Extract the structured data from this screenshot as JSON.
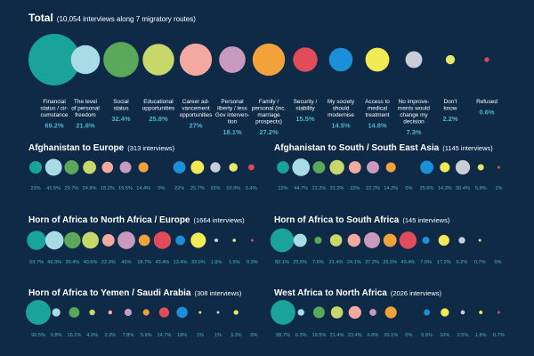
{
  "colors": {
    "background": "#0e2a47",
    "label_text": "#ffffff",
    "value_text": "#4fb3c8",
    "palette": [
      "#1aa39a",
      "#a9dbe6",
      "#5aa85a",
      "#c7d76a",
      "#f4a9a0",
      "#c99ac0",
      "#f3a23a",
      "#e24b5a",
      "#1b8fd8",
      "#f2ea55",
      "#c9cdd8",
      "#e6e66a",
      "#d94a5a"
    ]
  },
  "chart_data": [
    {
      "type": "bubble",
      "title": "Total",
      "subtitle": "(10,054 interviews along 7 migratory routes)",
      "categories": [
        "Financial status / circumstance",
        "The level of personal freedom",
        "Social status",
        "Educational opportunities",
        "Career advancement opportunities",
        "Personal liberty / less Gov intervention",
        "Family / personal (inc. marriage prospects)",
        "Security / stability",
        "My society should modernise",
        "Access to medical treatment",
        "No improvements would change my decision",
        "Don't know",
        "Refused"
      ],
      "category_labels": [
        [
          "Financial",
          "status / cir-",
          "cumstance"
        ],
        [
          "The level",
          "of personal",
          "freedom"
        ],
        [
          "Social",
          "status"
        ],
        [
          "Educational",
          "opportunities"
        ],
        [
          "Career ad-",
          "vancement",
          "opportunities"
        ],
        [
          "Personal",
          "liberty / less",
          "Gov interven-",
          "tion"
        ],
        [
          "Family /",
          "personal (inc.",
          "marriage",
          "prospects)"
        ],
        [
          "Security /",
          "stability"
        ],
        [
          "My society",
          "should",
          "modernise"
        ],
        [
          "Access to",
          "medical",
          "treatment"
        ],
        [
          "No improve-",
          "ments would",
          "change my",
          "decision"
        ],
        [
          "Don't",
          "know"
        ],
        [
          "Refused"
        ]
      ],
      "value_labels": [
        "69.2%",
        "21.8%",
        "32.4%",
        "25.8%",
        "27%",
        "18.1%",
        "27.2%",
        "15.5%",
        "14.5%",
        "14.8%",
        "7.3%",
        "2.2%",
        "0.6%"
      ],
      "values": [
        69.2,
        21.8,
        32.4,
        25.8,
        27,
        18.1,
        27.2,
        15.5,
        14.5,
        14.8,
        7.3,
        2.2,
        0.6
      ]
    },
    {
      "type": "bubble",
      "title": "Afghanistan to Europe",
      "subtitle": "(313 interviews)",
      "value_labels": [
        "23%",
        "41.5%",
        "29.7%",
        "24.9%",
        "18.2%",
        "19.5%",
        "14.4%",
        "0%",
        "22%",
        "25.7%",
        "15%",
        "10.9%",
        "5.4%"
      ],
      "values": [
        23,
        41.5,
        29.7,
        24.9,
        18.2,
        19.5,
        14.4,
        0,
        22,
        25.7,
        15,
        10.9,
        5.4
      ]
    },
    {
      "type": "bubble",
      "title": "Afghanistan to South / South East Asia",
      "subtitle": "(1145 interviews)",
      "value_labels": [
        "22%",
        "44.7%",
        "22.2%",
        "31.2%",
        "22%",
        "22.2%",
        "14.2%",
        "0%",
        "25.6%",
        "14.3%",
        "30.4%",
        "5.8%",
        "1%"
      ],
      "values": [
        22,
        44.7,
        22.2,
        31.2,
        22,
        22.2,
        14.2,
        0,
        25.6,
        14.3,
        30.4,
        5.8,
        1
      ]
    },
    {
      "type": "bubble",
      "title": "Horn of Africa to North Africa / Europe",
      "subtitle": "(1664 interviews)",
      "value_labels": [
        "53.7%",
        "49.3%",
        "39.4%",
        "40.6%",
        "22.3%",
        "45%",
        "18.7%",
        "43.4%",
        "13.4%",
        "33.9%",
        "1.9%",
        "1.5%",
        "0.3%"
      ],
      "values": [
        53.7,
        49.3,
        39.4,
        40.6,
        22.3,
        45,
        18.7,
        43.4,
        13.4,
        33.9,
        1.9,
        1.5,
        0.3
      ]
    },
    {
      "type": "bubble",
      "title": "Horn of Africa to South Africa",
      "subtitle": "(145 interviews)",
      "value_labels": [
        "82.1%",
        "25.5%",
        "7.6%",
        "21.4%",
        "24.1%",
        "37.2%",
        "25.5%",
        "43.4%",
        "7.6%",
        "17.2%",
        "6.2%",
        "0.7%",
        "0%"
      ],
      "values": [
        82.1,
        25.5,
        7.6,
        21.4,
        24.1,
        37.2,
        25.5,
        43.4,
        7.6,
        17.2,
        6.2,
        0.7,
        0
      ]
    },
    {
      "type": "bubble",
      "title": "Horn of Africa to Yemen / Saudi Arabia",
      "subtitle": "(308 interviews)",
      "value_labels": [
        "90.5%",
        "9.8%",
        "16.1%",
        "4.9%",
        "2.3%",
        "7.8%",
        "5.9%",
        "14.7%",
        "18%",
        "1%",
        "1%",
        "3.3%",
        "0%"
      ],
      "values": [
        90.5,
        9.8,
        16.1,
        4.9,
        2.3,
        7.8,
        5.9,
        14.7,
        18,
        1,
        1,
        3.3,
        0
      ]
    },
    {
      "type": "bubble",
      "title": "West Africa to North Africa",
      "subtitle": "(2026 interviews)",
      "value_labels": [
        "88.7%",
        "6.3%",
        "19.5%",
        "21.4%",
        "23.4%",
        "6.8%",
        "20.1%",
        "0%",
        "5.5%",
        "10%",
        "2.5%",
        "1.8%",
        "0.7%"
      ],
      "values": [
        88.7,
        6.3,
        19.5,
        21.4,
        23.4,
        6.8,
        20.1,
        0,
        5.5,
        10,
        2.5,
        1.8,
        0.7
      ]
    }
  ]
}
